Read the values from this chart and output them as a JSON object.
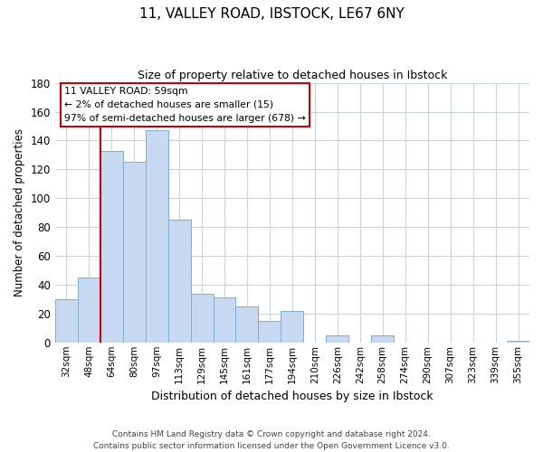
{
  "title_line1": "11, VALLEY ROAD, IBSTOCK, LE67 6NY",
  "title_line2": "Size of property relative to detached houses in Ibstock",
  "xlabel": "Distribution of detached houses by size in Ibstock",
  "ylabel": "Number of detached properties",
  "bar_labels": [
    "32sqm",
    "48sqm",
    "64sqm",
    "80sqm",
    "97sqm",
    "113sqm",
    "129sqm",
    "145sqm",
    "161sqm",
    "177sqm",
    "194sqm",
    "210sqm",
    "226sqm",
    "242sqm",
    "258sqm",
    "274sqm",
    "290sqm",
    "307sqm",
    "323sqm",
    "339sqm",
    "355sqm"
  ],
  "bar_values": [
    30,
    45,
    133,
    125,
    147,
    85,
    34,
    31,
    25,
    15,
    22,
    0,
    5,
    0,
    5,
    0,
    0,
    0,
    0,
    0,
    1
  ],
  "bar_color": "#c6d9f1",
  "bar_edge_color": "#7bafd4",
  "ylim": [
    0,
    180
  ],
  "yticks": [
    0,
    20,
    40,
    60,
    80,
    100,
    120,
    140,
    160,
    180
  ],
  "vline_color": "#cc0000",
  "annotation_text_line1": "11 VALLEY ROAD: 59sqm",
  "annotation_text_line2": "← 2% of detached houses are smaller (15)",
  "annotation_text_line3": "97% of semi-detached houses are larger (678) →",
  "footer_line1": "Contains HM Land Registry data © Crown copyright and database right 2024.",
  "footer_line2": "Contains public sector information licensed under the Open Government Licence v3.0.",
  "background_color": "#ffffff",
  "grid_color": "#c8d4e0"
}
